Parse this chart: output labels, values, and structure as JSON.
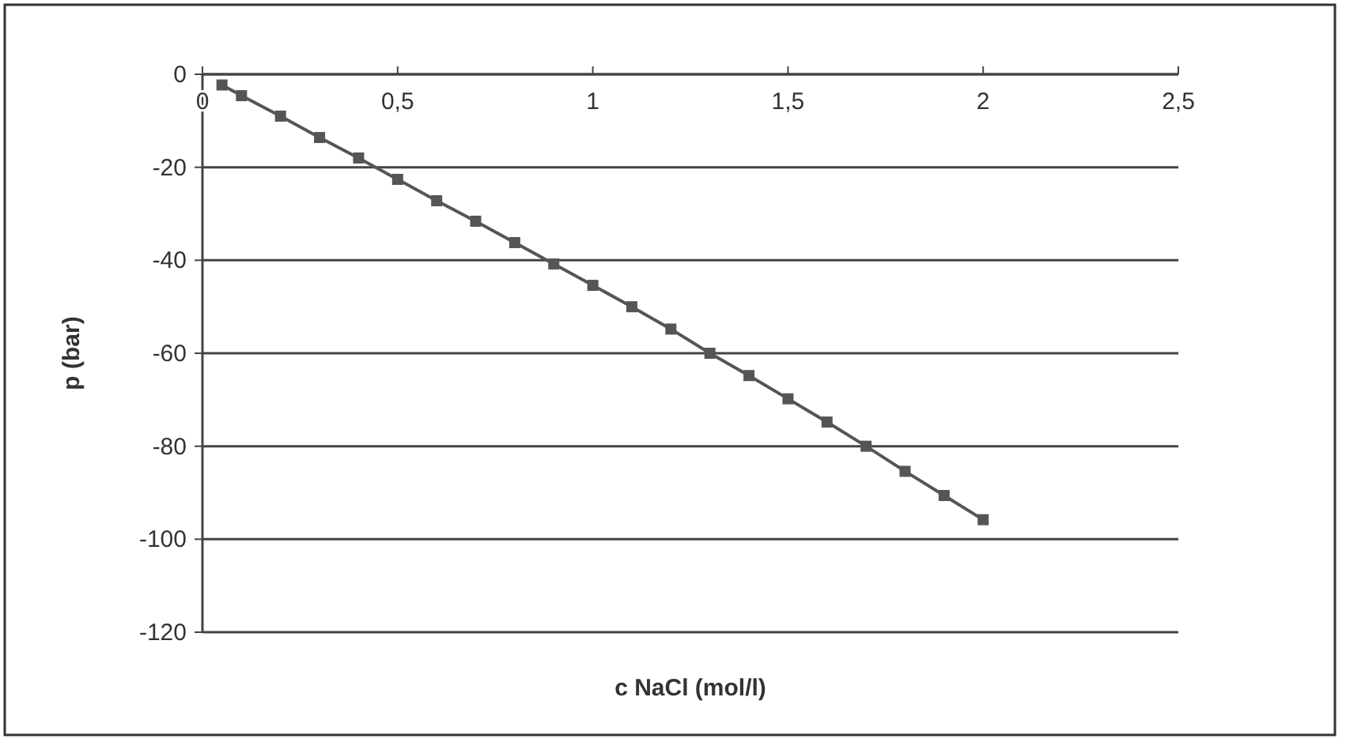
{
  "chart_data": {
    "type": "line",
    "xlabel": "c  NaCl (mol/l)",
    "ylabel": "p  (bar)",
    "x": [
      0.05,
      0.1,
      0.2,
      0.3,
      0.4,
      0.5,
      0.6,
      0.7,
      0.8,
      0.9,
      1.0,
      1.1,
      1.2,
      1.3,
      1.4,
      1.5,
      1.6,
      1.7,
      1.8,
      1.9,
      2.0
    ],
    "series": [
      {
        "color": "#555555",
        "values": [
          -2.3,
          -4.6,
          -9,
          -13.6,
          -18,
          -22.6,
          -27.2,
          -31.6,
          -36.2,
          -40.8,
          -45.4,
          -50,
          -54.8,
          -60,
          -64.8,
          -69.8,
          -74.8,
          -80,
          -85.4,
          -90.6,
          -95.8
        ]
      }
    ],
    "xlim": [
      0,
      2.5
    ],
    "xticks": [
      0,
      {
        "value": 0.5,
        "label": "0,5"
      },
      1,
      {
        "value": 1.5,
        "label": "1,5"
      },
      2,
      {
        "value": 2.5,
        "label": "2,5"
      }
    ],
    "ylim": [
      -120,
      0
    ],
    "yticks": [
      -120,
      -100,
      -80,
      -60,
      -40,
      -20,
      0
    ],
    "grid": "y",
    "marker": "square",
    "line_style": "solid"
  }
}
